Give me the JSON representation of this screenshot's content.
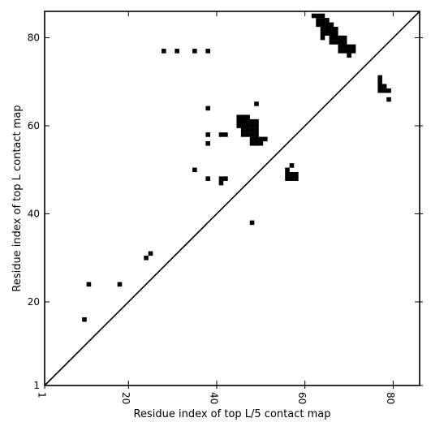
{
  "chart_data": {
    "type": "heatmap",
    "xlabel": "Residue index of top L/5 contact map",
    "ylabel": "Residue index of top L contact map",
    "xlim": [
      1,
      86
    ],
    "ylim": [
      1,
      86
    ],
    "x_ticks": [
      {
        "value": 1,
        "label": "1"
      },
      {
        "value": 20,
        "label": "20"
      },
      {
        "value": 40,
        "label": "40"
      },
      {
        "value": 60,
        "label": "60"
      },
      {
        "value": 80,
        "label": "80"
      }
    ],
    "y_ticks": [
      {
        "value": 1,
        "label": "1"
      },
      {
        "value": 20,
        "label": "20"
      },
      {
        "value": 40,
        "label": "40"
      },
      {
        "value": 60,
        "label": "60"
      },
      {
        "value": 80,
        "label": "80"
      }
    ],
    "diagonal": true,
    "grid": false,
    "colors": {
      "contact": "#000000",
      "background": "#ffffff",
      "axis": "#000000"
    },
    "contacts": [
      [
        62,
        85
      ],
      [
        63,
        85
      ],
      [
        64,
        85
      ],
      [
        63,
        84
      ],
      [
        64,
        84
      ],
      [
        65,
        84
      ],
      [
        63,
        83
      ],
      [
        64,
        83
      ],
      [
        65,
        83
      ],
      [
        66,
        83
      ],
      [
        64,
        82
      ],
      [
        65,
        82
      ],
      [
        66,
        82
      ],
      [
        67,
        82
      ],
      [
        64,
        81
      ],
      [
        65,
        81
      ],
      [
        66,
        81
      ],
      [
        67,
        81
      ],
      [
        64,
        80
      ],
      [
        66,
        80
      ],
      [
        67,
        80
      ],
      [
        68,
        80
      ],
      [
        69,
        80
      ],
      [
        66,
        79
      ],
      [
        67,
        79
      ],
      [
        68,
        79
      ],
      [
        69,
        79
      ],
      [
        68,
        78
      ],
      [
        69,
        78
      ],
      [
        70,
        78
      ],
      [
        71,
        78
      ],
      [
        68,
        77
      ],
      [
        69,
        77
      ],
      [
        70,
        77
      ],
      [
        71,
        77
      ],
      [
        70,
        76
      ],
      [
        77,
        71
      ],
      [
        77,
        70
      ],
      [
        77,
        69
      ],
      [
        78,
        69
      ],
      [
        77,
        68
      ],
      [
        78,
        68
      ],
      [
        79,
        68
      ],
      [
        79,
        66
      ],
      [
        28,
        77
      ],
      [
        31,
        77
      ],
      [
        35,
        77
      ],
      [
        38,
        77
      ],
      [
        38,
        64
      ],
      [
        49,
        65
      ],
      [
        45,
        62
      ],
      [
        46,
        62
      ],
      [
        47,
        62
      ],
      [
        45,
        61
      ],
      [
        46,
        61
      ],
      [
        47,
        61
      ],
      [
        48,
        61
      ],
      [
        49,
        61
      ],
      [
        45,
        60
      ],
      [
        46,
        60
      ],
      [
        47,
        60
      ],
      [
        48,
        60
      ],
      [
        49,
        60
      ],
      [
        46,
        59
      ],
      [
        47,
        59
      ],
      [
        48,
        59
      ],
      [
        49,
        59
      ],
      [
        46,
        58
      ],
      [
        47,
        58
      ],
      [
        48,
        58
      ],
      [
        49,
        58
      ],
      [
        41,
        58
      ],
      [
        42,
        58
      ],
      [
        38,
        58
      ],
      [
        48,
        57
      ],
      [
        49,
        57
      ],
      [
        50,
        57
      ],
      [
        51,
        57
      ],
      [
        48,
        56
      ],
      [
        49,
        56
      ],
      [
        50,
        56
      ],
      [
        38,
        56
      ],
      [
        57,
        51
      ],
      [
        35,
        50
      ],
      [
        56,
        50
      ],
      [
        56,
        49
      ],
      [
        57,
        49
      ],
      [
        58,
        49
      ],
      [
        56,
        48
      ],
      [
        57,
        48
      ],
      [
        58,
        48
      ],
      [
        38,
        48
      ],
      [
        41,
        48
      ],
      [
        42,
        48
      ],
      [
        41,
        47
      ],
      [
        48,
        38
      ],
      [
        25,
        31
      ],
      [
        24,
        30
      ],
      [
        11,
        24
      ],
      [
        18,
        24
      ],
      [
        10,
        16
      ]
    ]
  }
}
